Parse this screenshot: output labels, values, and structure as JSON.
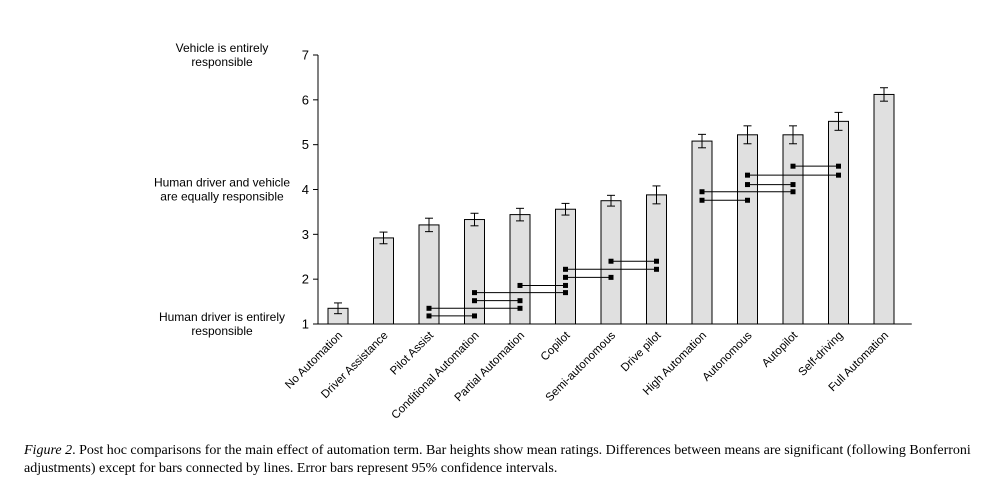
{
  "chart_data": {
    "type": "bar",
    "categories": [
      "No Automation",
      "Driver Assistance",
      "Pilot Assist",
      "Conditional Automation",
      "Partial Automation",
      "Copilot",
      "Semi-autonomous",
      "Drive pilot",
      "High Automation",
      "Autonomous",
      "Autopilot",
      "Self-driving",
      "Full Automation"
    ],
    "values": [
      1.35,
      2.92,
      3.21,
      3.33,
      3.44,
      3.56,
      3.75,
      3.88,
      5.08,
      5.22,
      5.22,
      5.52,
      6.12
    ],
    "errors": [
      0.12,
      0.13,
      0.15,
      0.14,
      0.14,
      0.13,
      0.12,
      0.2,
      0.15,
      0.2,
      0.2,
      0.2,
      0.15
    ],
    "ylim": [
      1,
      7
    ],
    "yticks": [
      1,
      2,
      3,
      4,
      5,
      6,
      7
    ],
    "ylabels": [
      {
        "value": 7,
        "lines": [
          "Vehicle is entirely",
          "responsible"
        ]
      },
      {
        "value": 4,
        "lines": [
          "Human driver and vehicle",
          "are equally responsible"
        ]
      },
      {
        "value": 1,
        "lines": [
          "Human driver is entirely",
          "responsible"
        ]
      }
    ],
    "connections": [
      {
        "from": 2,
        "to": 4,
        "y": 1.35
      },
      {
        "from": 2,
        "to": 3,
        "y": 1.18
      },
      {
        "from": 3,
        "to": 5,
        "y": 1.7
      },
      {
        "from": 3,
        "to": 4,
        "y": 1.52
      },
      {
        "from": 4,
        "to": 5,
        "y": 1.86
      },
      {
        "from": 5,
        "to": 7,
        "y": 2.22
      },
      {
        "from": 5,
        "to": 6,
        "y": 2.04
      },
      {
        "from": 6,
        "to": 7,
        "y": 2.4
      },
      {
        "from": 8,
        "to": 10,
        "y": 3.95
      },
      {
        "from": 8,
        "to": 9,
        "y": 3.76
      },
      {
        "from": 9,
        "to": 11,
        "y": 4.32
      },
      {
        "from": 9,
        "to": 10,
        "y": 4.11
      },
      {
        "from": 10,
        "to": 11,
        "y": 4.52
      }
    ],
    "colors": {
      "bar_fill": "#e0e0e0",
      "bar_stroke": "#000000",
      "line": "#000000"
    }
  },
  "caption": {
    "label": "Figure 2",
    "text": ". Post hoc comparisons for the main effect of automation term. Bar heights show mean ratings. Differences between means are significant (following Bonferroni adjustments) except for bars connected by lines. Error bars represent 95% confidence intervals."
  }
}
